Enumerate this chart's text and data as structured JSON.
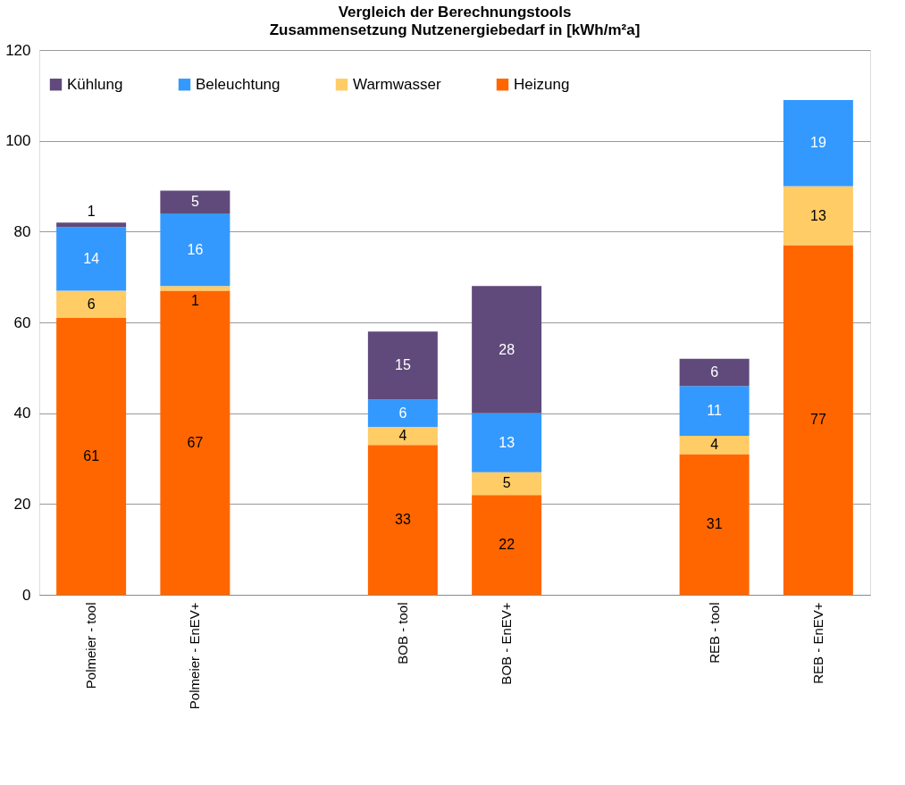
{
  "chart_data": {
    "type": "bar",
    "title": "Vergleich der Berechnungstools",
    "subtitle": "Zusammensetzung Nutzenergiebedarf in  [kWh/m²a]",
    "categories": [
      "Polmeier - tool",
      "Polmeier - EnEV+",
      null,
      "BOB - tool",
      "BOB - EnEV+",
      null,
      "REB - tool",
      "REB - EnEV+"
    ],
    "stacked": true,
    "data_labels": true,
    "grid": "y",
    "legend": "top left",
    "ylim": [
      0,
      120
    ],
    "yticks": [
      0,
      20,
      40,
      60,
      80,
      100,
      120
    ],
    "series": [
      {
        "name": "Heizung",
        "color": "#ff6600",
        "values": [
          61,
          67,
          null,
          33,
          22,
          null,
          31,
          77
        ]
      },
      {
        "name": "Warmwasser",
        "color": "#ffcc66",
        "values": [
          6,
          1,
          null,
          4,
          5,
          null,
          4,
          13
        ]
      },
      {
        "name": "Beleuchtung",
        "color": "#3399ff",
        "values": [
          14,
          16,
          null,
          6,
          13,
          null,
          11,
          19
        ]
      },
      {
        "name": "Kühlung",
        "color": "#604a7b",
        "values": [
          1,
          5,
          null,
          15,
          28,
          null,
          6,
          null
        ]
      }
    ]
  }
}
